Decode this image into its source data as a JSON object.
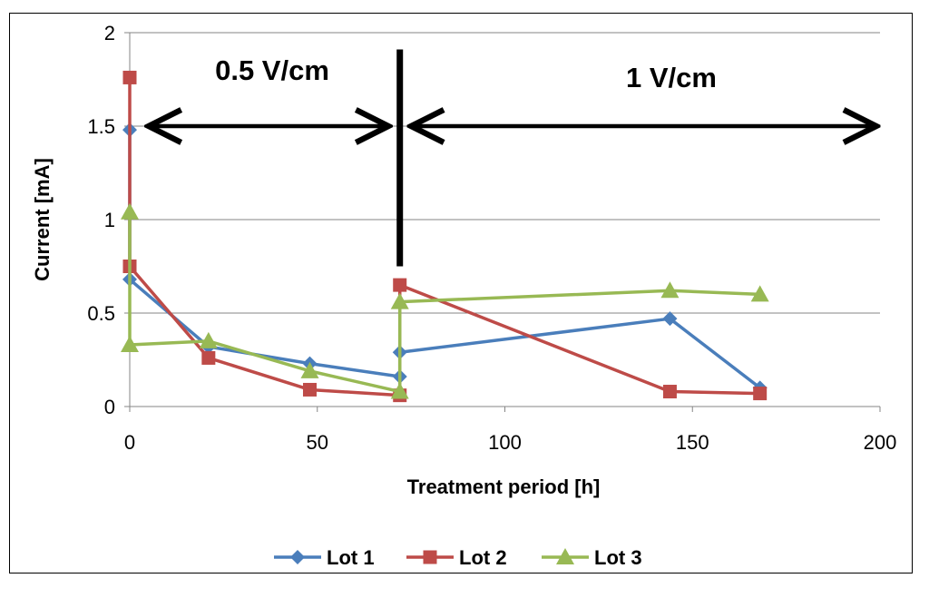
{
  "chart_data": {
    "type": "line",
    "title": "",
    "xlabel": "Treatment period [h]",
    "ylabel": "Current [mA]",
    "xlim": [
      0,
      200
    ],
    "ylim": [
      0,
      2
    ],
    "x_ticks": [
      "0",
      "50",
      "100",
      "150",
      "200"
    ],
    "y_ticks": [
      "0",
      "0.5",
      "1",
      "1.5",
      "2"
    ],
    "grid": "horizontal",
    "legend_position": "bottom",
    "series": [
      {
        "name": "Lot 1",
        "color": "#4a7ebb",
        "marker": "diamond",
        "x": [
          0,
          0,
          21,
          48,
          72,
          72,
          144,
          168
        ],
        "y": [
          1.48,
          0.68,
          0.32,
          0.23,
          0.16,
          0.29,
          0.47,
          0.1
        ]
      },
      {
        "name": "Lot 2",
        "color": "#be4b48",
        "marker": "square",
        "x": [
          0,
          0,
          21,
          48,
          72,
          72,
          144,
          168
        ],
        "y": [
          1.76,
          0.75,
          0.26,
          0.09,
          0.06,
          0.65,
          0.08,
          0.07
        ]
      },
      {
        "name": "Lot 3",
        "color": "#98b954",
        "marker": "triangle",
        "x": [
          0,
          0,
          21,
          48,
          72,
          72,
          144,
          168
        ],
        "y": [
          1.04,
          0.33,
          0.35,
          0.19,
          0.08,
          0.56,
          0.62,
          0.6
        ]
      }
    ],
    "annotations": {
      "phase1_label": "0.5 V/cm",
      "phase2_label": "1 V/cm",
      "divider_x": 72,
      "divider_y_range": [
        0.75,
        1.91
      ],
      "phase1_arrow_x": [
        5,
        69
      ],
      "phase2_arrow_x": [
        75,
        200
      ],
      "arrow_y": 1.5
    }
  }
}
